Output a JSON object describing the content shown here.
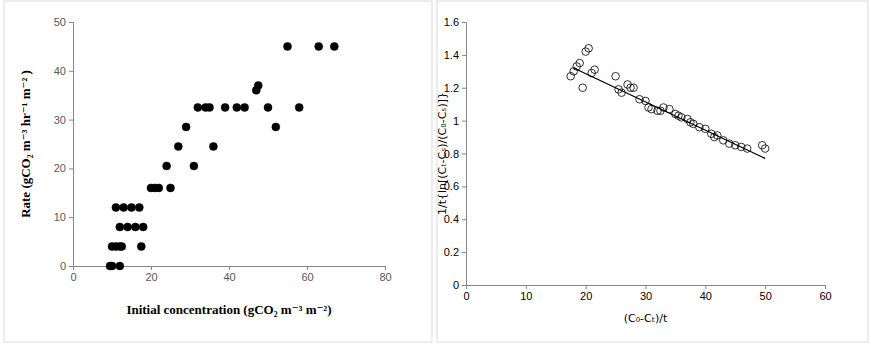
{
  "chart_data": [
    {
      "type": "scatter",
      "x_label": "Initial concentration (gCO₂ m⁻³ m⁻²)",
      "y_label": "Rate (gCO₂ m⁻³ hr⁻¹ m⁻² )",
      "marker": "circle",
      "color": "#000000",
      "x": [
        9.5,
        10,
        10,
        11,
        12,
        12,
        12.5,
        11,
        12,
        13,
        14,
        15,
        16,
        17,
        17.5,
        18,
        20,
        21,
        22,
        24,
        25,
        27,
        29,
        31,
        32,
        34,
        35,
        36,
        39,
        42,
        44,
        47,
        47.5,
        50,
        52,
        55,
        58,
        63,
        67
      ],
      "values": [
        0,
        0,
        4,
        4,
        0,
        4,
        4,
        12,
        8,
        12,
        8,
        12,
        8,
        12,
        4,
        8,
        16,
        16,
        16,
        20.5,
        16,
        24.5,
        28.5,
        20.5,
        32.5,
        32.5,
        32.5,
        24.5,
        32.5,
        32.5,
        32.5,
        36,
        37,
        32.5,
        28.5,
        45,
        32.5,
        45,
        45
      ],
      "xlim": [
        0,
        80
      ],
      "xticks": [
        0,
        20,
        40,
        60,
        80
      ],
      "ylim": [
        0,
        50
      ],
      "yticks": [
        0,
        10,
        20,
        30,
        40,
        50
      ]
    },
    {
      "type": "scatter",
      "x_label": "(C₀-Cₜ)/t",
      "y_label": "1/t{ln[(Cₜ-Cₛ)/(C₀-Cₛ)]}",
      "series": [
        {
          "type": "scatter",
          "marker": "circle-open",
          "color": "#000000",
          "x": [
            17.5,
            18,
            18.5,
            19,
            19.5,
            20,
            20.5,
            21,
            21.5,
            25,
            25.5,
            26,
            27,
            27.5,
            28,
            29,
            30,
            30.5,
            31,
            32,
            32.5,
            33,
            34,
            35,
            35.5,
            36,
            37,
            37.5,
            38,
            39,
            40,
            41,
            41.5,
            42,
            43,
            44,
            45,
            46,
            47,
            49.5,
            50
          ],
          "values": [
            1.27,
            1.3,
            1.33,
            1.35,
            1.2,
            1.42,
            1.44,
            1.29,
            1.31,
            1.27,
            1.19,
            1.17,
            1.22,
            1.2,
            1.2,
            1.13,
            1.12,
            1.08,
            1.07,
            1.06,
            1.06,
            1.08,
            1.07,
            1.04,
            1.03,
            1.02,
            1.01,
            0.99,
            0.98,
            0.96,
            0.95,
            0.92,
            0.9,
            0.91,
            0.88,
            0.86,
            0.85,
            0.84,
            0.83,
            0.85,
            0.83
          ]
        },
        {
          "type": "line",
          "line_style": "solid",
          "color": "#000000",
          "x": [
            18,
            50
          ],
          "values": [
            1.32,
            0.77
          ]
        }
      ],
      "xlim": [
        0,
        60
      ],
      "xticks": [
        0,
        10,
        20,
        30,
        40,
        50,
        60
      ],
      "ylim": [
        0,
        1.6
      ],
      "yticks": [
        0,
        0.2,
        0.4,
        0.6,
        0.8,
        1,
        1.2,
        1.4,
        1.6
      ]
    }
  ]
}
